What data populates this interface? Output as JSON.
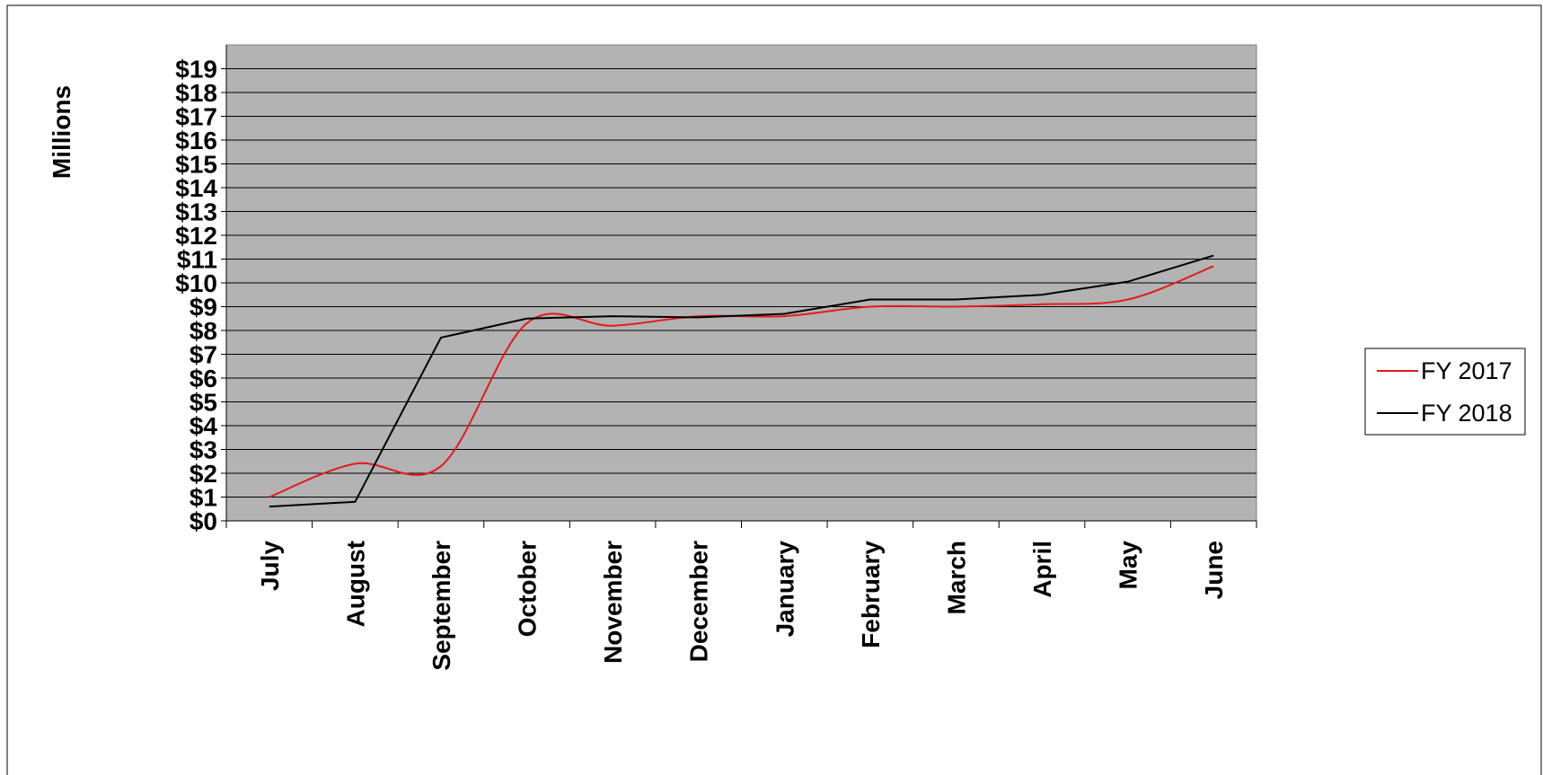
{
  "chart_data": {
    "type": "line",
    "title": "",
    "xlabel": "",
    "ylabel": "Millions",
    "ylim": [
      0,
      20
    ],
    "y_tick_values": [
      0,
      1,
      2,
      3,
      4,
      5,
      6,
      7,
      8,
      9,
      10,
      11,
      12,
      13,
      14,
      15,
      16,
      17,
      18,
      19
    ],
    "y_tick_labels": [
      "$0",
      "$1",
      "$2",
      "$3",
      "$4",
      "$5",
      "$6",
      "$7",
      "$8",
      "$9",
      "$10",
      "$11",
      "$12",
      "$13",
      "$14",
      "$15",
      "$16",
      "$17",
      "$18",
      "$19"
    ],
    "categories": [
      "July",
      "August",
      "September",
      "October",
      "November",
      "December",
      "January",
      "February",
      "March",
      "April",
      "May",
      "June"
    ],
    "series": [
      {
        "name": "FY 2017",
        "color": "#e31a1c",
        "smooth": true,
        "values": [
          1.0,
          2.4,
          2.3,
          8.3,
          8.2,
          8.6,
          8.6,
          9.0,
          9.0,
          9.1,
          9.3,
          10.7
        ]
      },
      {
        "name": "FY 2018",
        "color": "#000000",
        "smooth": false,
        "values": [
          0.6,
          0.8,
          7.7,
          8.5,
          8.6,
          8.55,
          8.7,
          9.3,
          9.3,
          9.5,
          10.05,
          11.15
        ]
      }
    ],
    "plot_background": "#b3b3b3",
    "grid": true,
    "legend_position": "right"
  }
}
